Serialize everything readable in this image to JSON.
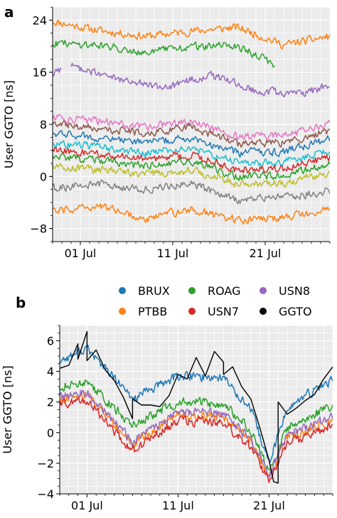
{
  "chart_data": [
    {
      "panel_label": "a",
      "type": "line",
      "ylabel": "User GGTO [ns]",
      "xlabel": "",
      "x_ticks": [
        "01 Jul",
        "11 Jul",
        "21 Jul"
      ],
      "y_ticks": [
        "−8",
        "0",
        "8",
        "16",
        "24"
      ],
      "xlim_days": [
        28,
        58
      ],
      "ylim": [
        -10,
        26
      ],
      "grid": true,
      "legend": "none",
      "series": [
        {
          "color": "#ff7f0e",
          "x": [
            28,
            33,
            38,
            43,
            48,
            53,
            58
          ],
          "values": [
            23.8,
            22.4,
            21.5,
            22.3,
            22.9,
            20.2,
            21.5
          ]
        },
        {
          "color": "#2ca02c",
          "x": [
            28,
            33,
            38,
            43,
            48,
            52
          ],
          "values": [
            20.5,
            20.2,
            19.1,
            19.9,
            20.1,
            17.2
          ]
        },
        {
          "color": "#9467bd",
          "x": [
            28,
            29
          ],
          "values": [
            15.9,
            16.6
          ]
        },
        {
          "color": "#9467bd",
          "x": [
            30,
            35,
            40,
            45,
            50,
            55,
            58
          ],
          "values": [
            17.0,
            15.0,
            13.6,
            15.6,
            13.2,
            12.6,
            14.2
          ]
        },
        {
          "color": "#e377c2",
          "x": [
            28,
            33,
            38,
            43,
            48,
            53,
            58
          ],
          "values": [
            9.0,
            8.5,
            7.6,
            8.4,
            6.1,
            6.2,
            8.3
          ]
        },
        {
          "color": "#8c564b",
          "x": [
            28,
            33,
            38,
            43,
            48,
            53,
            58
          ],
          "values": [
            8.0,
            7.5,
            6.6,
            7.5,
            5.0,
            5.2,
            7.0
          ]
        },
        {
          "color": "#1f77b4",
          "x": [
            28,
            33,
            38,
            43,
            48,
            53,
            58
          ],
          "values": [
            6.5,
            6.0,
            5.2,
            6.0,
            3.6,
            3.8,
            5.8
          ]
        },
        {
          "color": "#17becf",
          "x": [
            28,
            33,
            38,
            43,
            48,
            53,
            58
          ],
          "values": [
            5.0,
            4.5,
            3.6,
            4.4,
            2.0,
            2.2,
            4.0
          ]
        },
        {
          "color": "#d62728",
          "x": [
            28,
            33,
            38,
            43,
            48,
            53,
            58
          ],
          "values": [
            4.0,
            3.4,
            2.6,
            3.3,
            1.0,
            1.2,
            3.0
          ]
        },
        {
          "color": "#2ca02c",
          "x": [
            28,
            33,
            38,
            43,
            48,
            53,
            58
          ],
          "values": [
            3.0,
            2.4,
            1.6,
            2.3,
            0.0,
            0.2,
            2.0
          ]
        },
        {
          "color": "#bcbd22",
          "x": [
            28,
            33,
            38,
            43,
            48,
            53,
            58
          ],
          "values": [
            1.6,
            1.0,
            0.3,
            1.0,
            -1.2,
            -1.0,
            0.6
          ]
        },
        {
          "color": "#7f7f7f",
          "x": [
            28,
            33,
            38,
            43,
            48,
            53,
            58
          ],
          "values": [
            -1.8,
            -1.2,
            -2.0,
            -1.2,
            -3.6,
            -3.2,
            -2.2
          ]
        },
        {
          "color": "#ff7f0e",
          "x": [
            28,
            33,
            38,
            43,
            48,
            53,
            58
          ],
          "values": [
            -5.4,
            -4.5,
            -6.4,
            -5.0,
            -6.8,
            -6.4,
            -5.0
          ]
        }
      ]
    },
    {
      "panel_label": "b",
      "type": "line",
      "ylabel": "User GGTO [ns]",
      "xlabel": "",
      "x_ticks": [
        "01 Jul",
        "11 Jul",
        "21 Jul"
      ],
      "y_ticks": [
        "−4",
        "−2",
        "0",
        "2",
        "4",
        "6"
      ],
      "xlim_days": [
        28,
        58
      ],
      "ylim": [
        -4,
        7
      ],
      "grid": true,
      "legend": {
        "placement": "top",
        "entries": [
          {
            "label": "BRUX",
            "color": "#1f77b4"
          },
          {
            "label": "ROAG",
            "color": "#2ca02c"
          },
          {
            "label": "USN8",
            "color": "#9467bd"
          },
          {
            "label": "PTBB",
            "color": "#ff7f0e"
          },
          {
            "label": "USN7",
            "color": "#d62728"
          },
          {
            "label": "GGTO",
            "color": "#000000"
          }
        ]
      },
      "series": [
        {
          "name": "BRUX",
          "color": "#1f77b4",
          "x": [
            28,
            31,
            36,
            41,
            46,
            49,
            51,
            53,
            58
          ],
          "values": [
            4.7,
            5.5,
            2.2,
            3.7,
            3.6,
            1.5,
            -2.0,
            1.6,
            3.5
          ]
        },
        {
          "name": "ROAG",
          "color": "#2ca02c",
          "x": [
            28,
            31,
            36,
            41,
            46,
            49,
            51,
            53,
            58
          ],
          "values": [
            3.0,
            3.3,
            0.5,
            2.0,
            1.9,
            0.2,
            -2.6,
            0.3,
            1.8
          ]
        },
        {
          "name": "PTBB",
          "color": "#ff7f0e",
          "x": [
            28,
            31,
            36,
            41,
            46,
            49,
            51,
            53,
            58
          ],
          "values": [
            2.2,
            2.4,
            -0.8,
            1.2,
            1.0,
            -0.6,
            -2.9,
            -0.3,
            0.8
          ]
        },
        {
          "name": "USN8",
          "color": "#9467bd",
          "x": [
            28,
            31,
            36,
            41,
            46,
            49,
            51,
            53,
            58
          ],
          "values": [
            2.4,
            2.6,
            -0.6,
            1.4,
            1.2,
            -0.4,
            -2.8,
            -0.2,
            1.0
          ]
        },
        {
          "name": "USN7",
          "color": "#d62728",
          "x": [
            28,
            31,
            36,
            41,
            46,
            49,
            51,
            53,
            58
          ],
          "values": [
            1.8,
            2.1,
            -1.2,
            0.8,
            0.6,
            -1.0,
            -3.1,
            -0.7,
            0.5
          ]
        },
        {
          "name": "GGTO",
          "color": "#000000",
          "x": [
            28,
            29,
            30,
            30,
            31,
            31,
            32,
            33,
            34,
            35,
            36,
            36,
            37,
            38,
            39,
            40,
            41,
            42,
            43,
            44,
            45,
            46,
            46,
            47,
            48,
            49,
            50,
            51,
            51.5,
            52,
            52,
            53,
            54,
            55,
            56,
            57,
            58
          ],
          "values": [
            4.2,
            4.4,
            5.8,
            4.8,
            6.6,
            4.7,
            5.4,
            4.1,
            3.4,
            2.3,
            0.9,
            2.2,
            1.8,
            1.8,
            1.7,
            2.4,
            3.8,
            3.5,
            4.9,
            3.7,
            5.3,
            4.6,
            3.8,
            4.3,
            3.0,
            2.2,
            0.3,
            -1.8,
            -3.2,
            -3.3,
            2.0,
            1.2,
            1.6,
            2.1,
            2.5,
            3.5,
            4.3
          ]
        }
      ]
    }
  ]
}
